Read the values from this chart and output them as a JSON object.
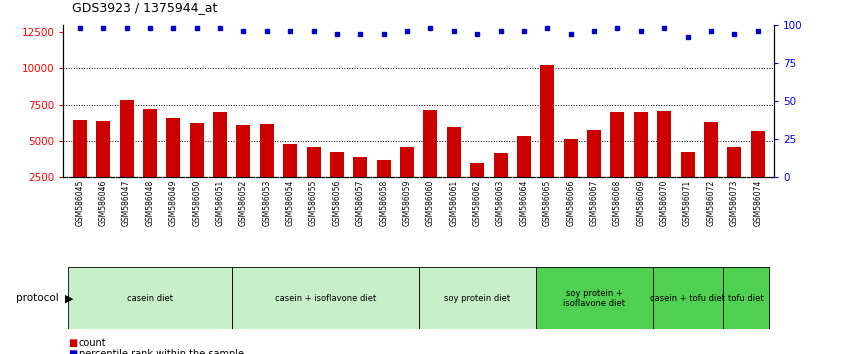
{
  "title": "GDS3923 / 1375944_at",
  "samples": [
    "GSM586045",
    "GSM586046",
    "GSM586047",
    "GSM586048",
    "GSM586049",
    "GSM586050",
    "GSM586051",
    "GSM586052",
    "GSM586053",
    "GSM586054",
    "GSM586055",
    "GSM586056",
    "GSM586057",
    "GSM586058",
    "GSM586059",
    "GSM586060",
    "GSM586061",
    "GSM586062",
    "GSM586063",
    "GSM586064",
    "GSM586065",
    "GSM586066",
    "GSM586067",
    "GSM586068",
    "GSM586069",
    "GSM586070",
    "GSM586071",
    "GSM586072",
    "GSM586073",
    "GSM586074"
  ],
  "counts": [
    6400,
    6350,
    7800,
    7200,
    6600,
    6200,
    7000,
    6100,
    6150,
    4750,
    4550,
    4200,
    3850,
    3700,
    4600,
    7100,
    5950,
    3500,
    4150,
    5350,
    10200,
    5100,
    5750,
    7000,
    7000,
    7050,
    4200,
    6300,
    4550,
    5650
  ],
  "percentile_ranks": [
    98,
    98,
    98,
    98,
    98,
    98,
    98,
    96,
    96,
    96,
    96,
    94,
    94,
    94,
    96,
    98,
    96,
    94,
    96,
    96,
    98,
    94,
    96,
    98,
    96,
    98,
    92,
    96,
    94,
    96
  ],
  "protocols": [
    {
      "label": "casein diet",
      "start": 0,
      "end": 7,
      "color": "#c8f0c8"
    },
    {
      "label": "casein + isoflavone diet",
      "start": 7,
      "end": 15,
      "color": "#c8f0c8"
    },
    {
      "label": "soy protein diet",
      "start": 15,
      "end": 20,
      "color": "#c8f0c8"
    },
    {
      "label": "soy protein +\nisoflavone diet",
      "start": 20,
      "end": 25,
      "color": "#50d050"
    },
    {
      "label": "casein + tofu diet",
      "start": 25,
      "end": 28,
      "color": "#50d050"
    },
    {
      "label": "tofu diet",
      "start": 28,
      "end": 30,
      "color": "#50d050"
    }
  ],
  "bar_color": "#CC0000",
  "dot_color": "#0000CC",
  "ylim_left": [
    2500,
    13000
  ],
  "ylim_right": [
    0,
    100
  ],
  "yticks_left": [
    2500,
    5000,
    7500,
    10000,
    12500
  ],
  "yticks_right": [
    0,
    25,
    50,
    75,
    100
  ],
  "hlines": [
    5000,
    7500,
    10000
  ]
}
